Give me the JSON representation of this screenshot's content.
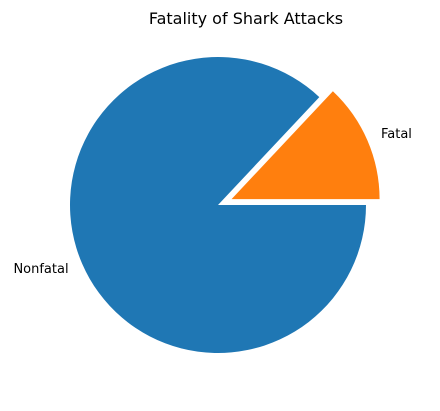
{
  "chart_data": {
    "type": "pie",
    "title": "Fatality of Shark Attacks",
    "categories": [
      "Fatal",
      "Nonfatal"
    ],
    "values": [
      13,
      87
    ],
    "colors": [
      "#ff7f0e",
      "#1f77b4"
    ],
    "explode": [
      0.1,
      0
    ],
    "start_angle": 0,
    "direction": "counterclockwise",
    "legend": "none"
  }
}
